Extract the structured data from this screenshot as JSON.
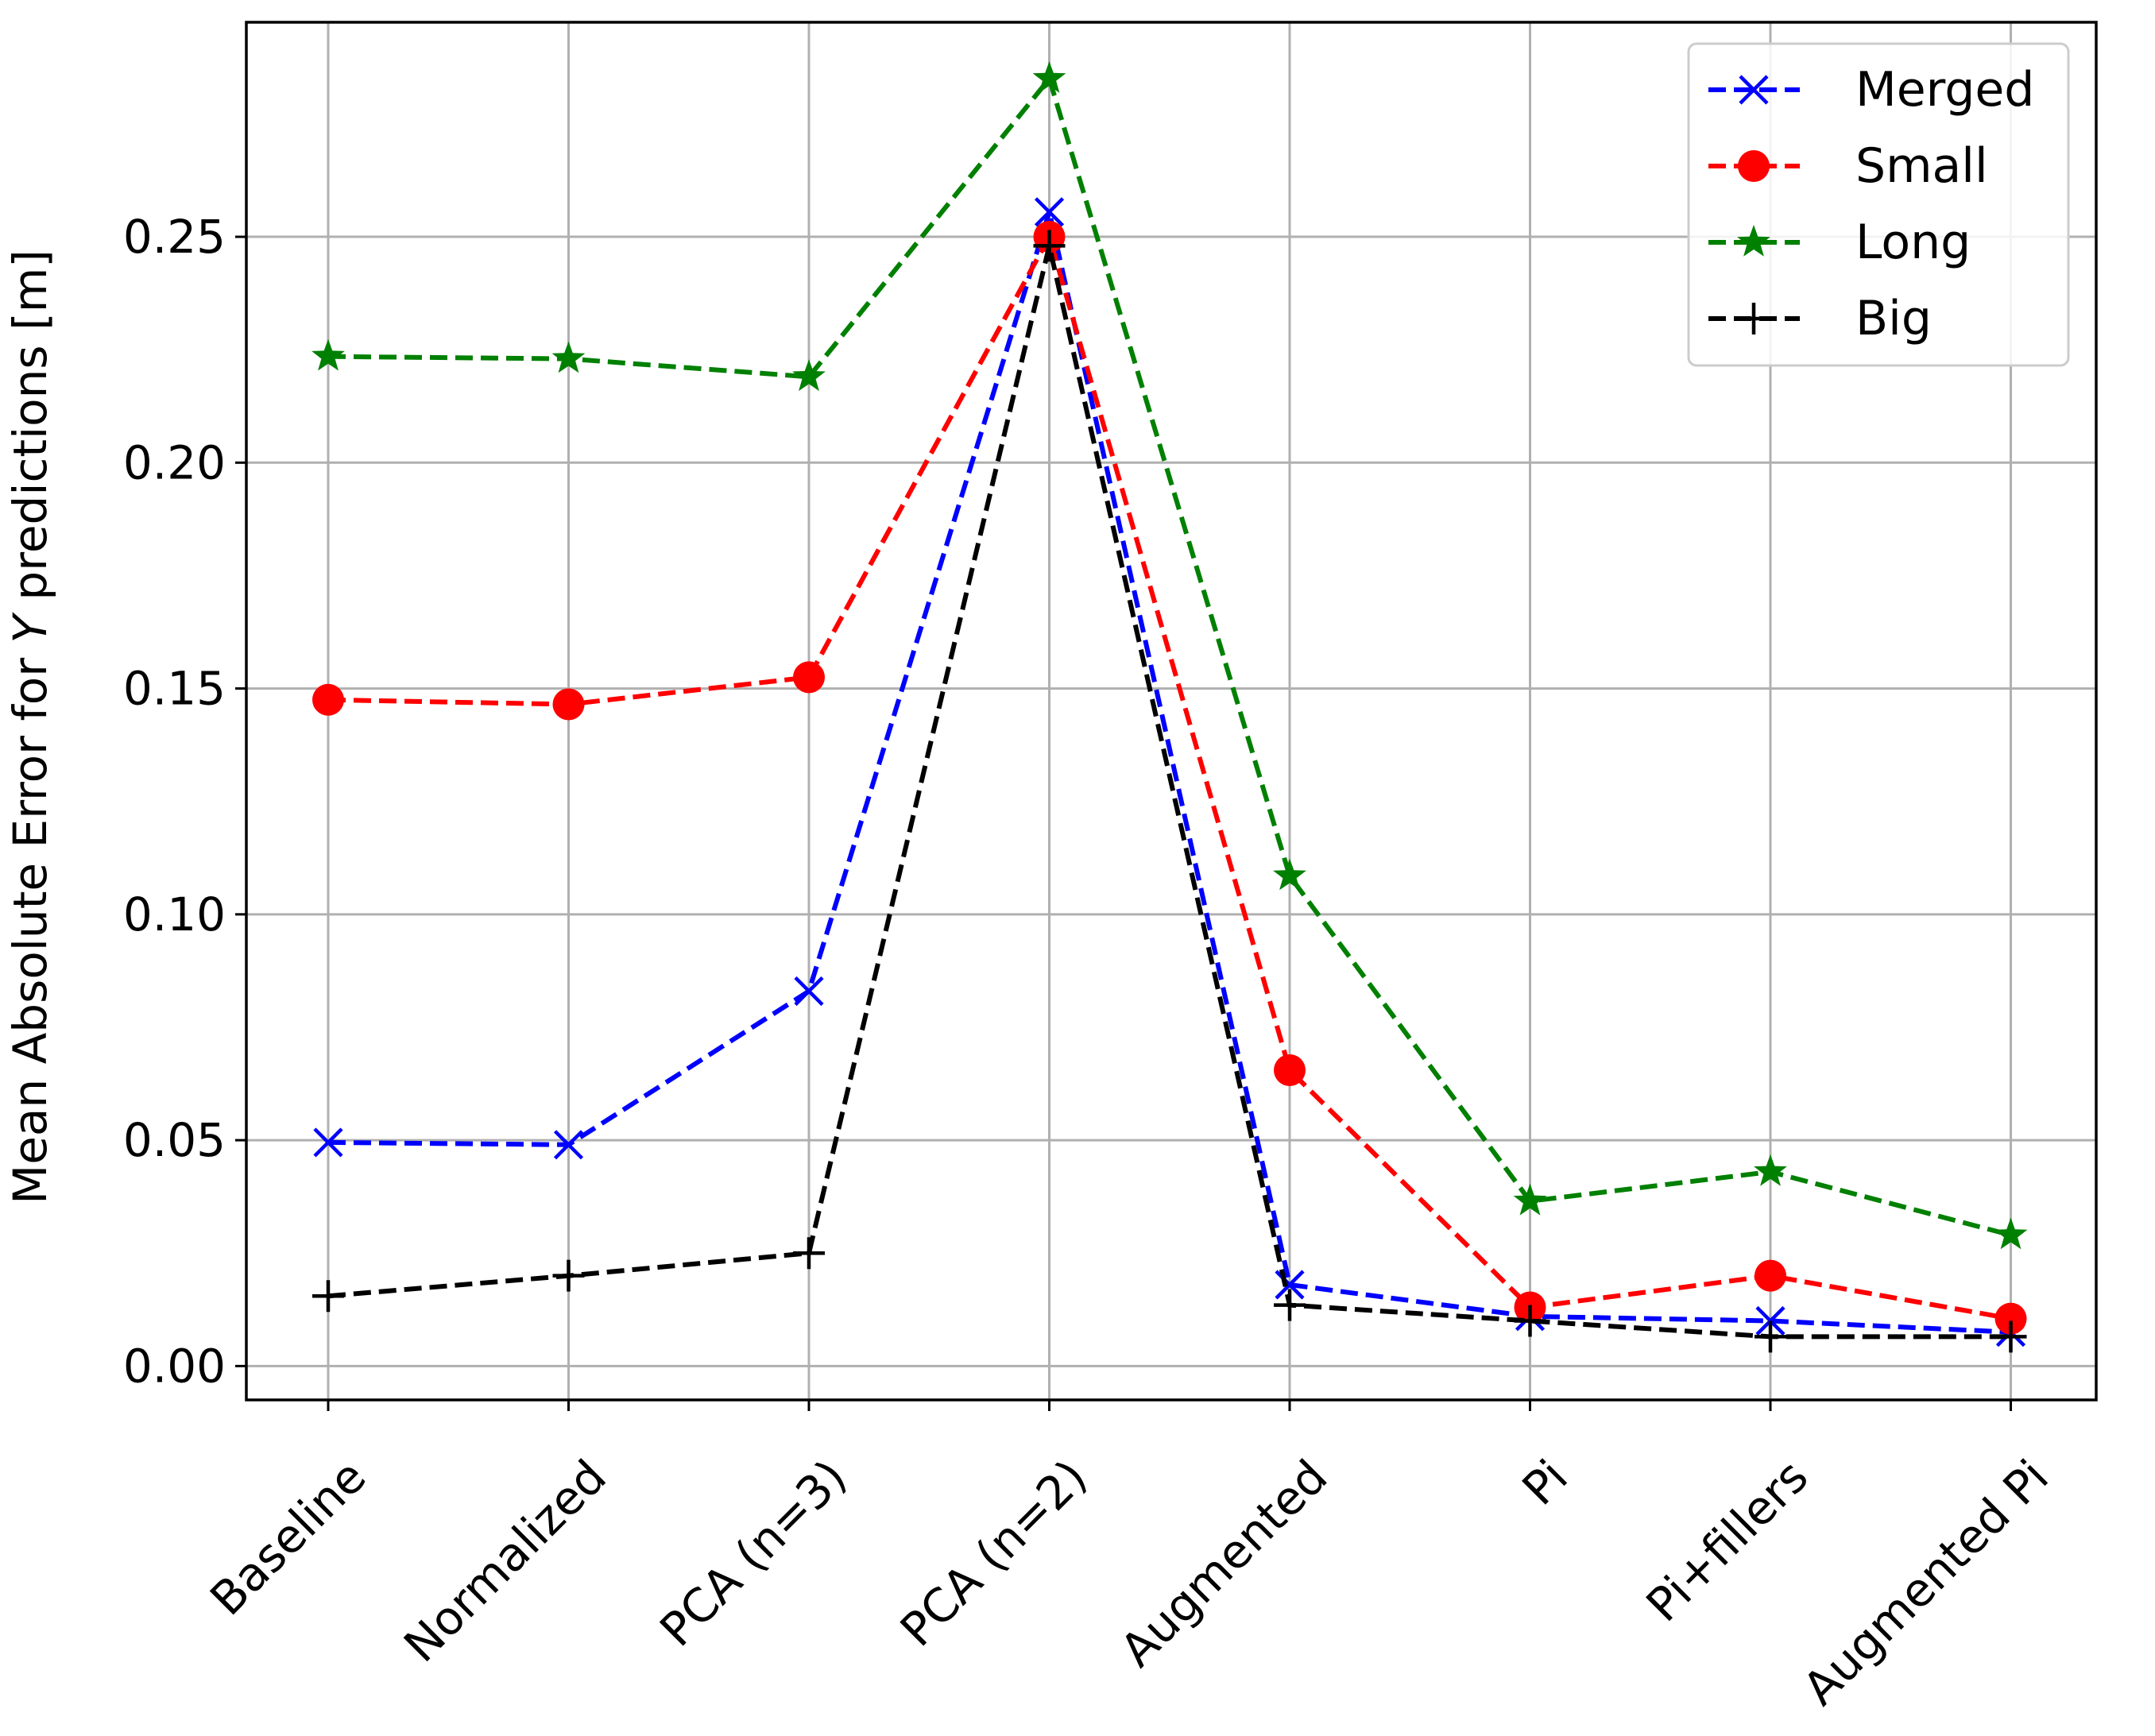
{
  "chart_data": {
    "type": "line",
    "title": "",
    "xlabel": "",
    "ylabel": "Mean Absolute Error for Y predictions [m]",
    "ylabel_parts": [
      "Mean Absolute Error for ",
      "Y",
      " predictions [m]"
    ],
    "categories": [
      "Baseline",
      "Normalized",
      "PCA (n=3)",
      "PCA (n=2)",
      "Augmented",
      "Pi",
      "Pi+fillers",
      "Augmented Pi"
    ],
    "yticks": [
      0.0,
      0.05,
      0.1,
      0.15,
      0.2,
      0.25
    ],
    "ytick_labels": [
      "0.00",
      "0.05",
      "0.10",
      "0.15",
      "0.20",
      "0.25"
    ],
    "ylim": [
      -0.0075,
      0.2975
    ],
    "grid": true,
    "legend_position": "top-right",
    "series": [
      {
        "name": "Merged",
        "color": "#0000ff",
        "marker": "x",
        "values": [
          0.0495,
          0.049,
          0.083,
          0.2555,
          0.018,
          0.011,
          0.01,
          0.0075
        ]
      },
      {
        "name": "Small",
        "color": "#ff0000",
        "marker": "o",
        "values": [
          0.1475,
          0.1465,
          0.1525,
          0.25,
          0.0655,
          0.013,
          0.02,
          0.0105
        ]
      },
      {
        "name": "Long",
        "color": "#008000",
        "marker": "*",
        "values": [
          0.2235,
          0.223,
          0.219,
          0.285,
          0.1085,
          0.0365,
          0.043,
          0.029
        ]
      },
      {
        "name": "Big",
        "color": "#000000",
        "marker": "+",
        "values": [
          0.0155,
          0.02,
          0.025,
          0.248,
          0.0135,
          0.01,
          0.0065,
          0.0065
        ]
      }
    ]
  }
}
